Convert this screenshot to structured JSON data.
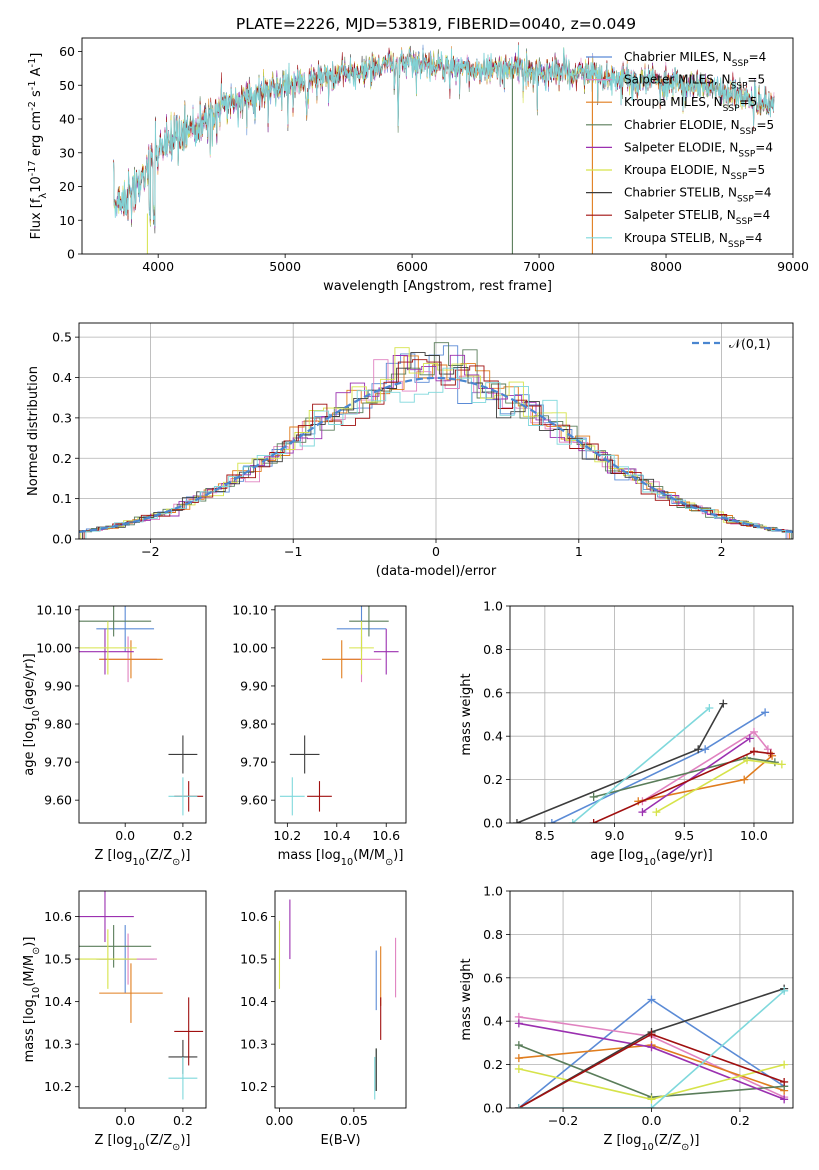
{
  "figure_title": "PLATE=2226, MJD=53819, FIBERID=0040, z=0.049",
  "series_names": [
    "Chabrier MILES, N$_{SSP}$=4",
    "Salpeter MILES, N$_{SSP}$=5",
    "Kroupa MILES, N$_{SSP}$=5",
    "Chabrier ELODIE, N$_{SSP}$=5",
    "Salpeter ELODIE, N$_{SSP}$=4",
    "Kroupa ELODIE, N$_{SSP}$=5",
    "Chabrier STELIB, N$_{SSP}$=4",
    "Salpeter STELIB, N$_{SSP}$=4",
    "Kroupa STELIB, N$_{SSP}$=4"
  ],
  "series_colors": [
    "#5b8bd6",
    "#e082c0",
    "#e07d1e",
    "#5a7d5a",
    "#9b30b0",
    "#d6e34a",
    "#3c3c3c",
    "#a01010",
    "#7fd8dc"
  ],
  "chart_data": [
    {
      "type": "line",
      "title": "PLATE=2226, MJD=53819, FIBERID=0040, z=0.049",
      "xlabel": "wavelength [Angstrom, rest frame]",
      "ylabel": "Flux [f$_\\lambda$10$^{-17}$ erg cm$^{-2}$ s$^{-1}$ A$^{-1}$]",
      "xlim": [
        3400,
        9000
      ],
      "ylim": [
        0,
        64
      ],
      "xticks": [
        4000,
        5000,
        6000,
        7000,
        8000,
        9000
      ],
      "yticks": [
        0,
        10,
        20,
        30,
        40,
        50,
        60
      ],
      "legend": "upper-right",
      "continuum": {
        "x": [
          3650,
          3800,
          3900,
          4000,
          4100,
          4300,
          4500,
          4800,
          5000,
          5300,
          5600,
          5800,
          6000,
          6200,
          6500,
          6800,
          7000,
          7200,
          7400,
          7600,
          7800,
          8000,
          8200,
          8400,
          8600,
          8800
        ],
        "y": [
          15,
          18,
          24,
          30,
          34,
          38,
          44,
          48,
          50,
          53,
          54,
          56,
          57,
          56,
          55,
          55,
          54,
          54,
          53,
          52,
          51,
          51,
          50,
          49,
          47,
          44
        ]
      },
      "dropouts": [
        {
          "x": 6790,
          "y": 0
        },
        {
          "x": 7420,
          "y": 0
        }
      ]
    },
    {
      "type": "line",
      "xlabel": "(data-model)/error",
      "ylabel": "Normed distribution",
      "xlim": [
        -2.5,
        2.5
      ],
      "ylim": [
        0,
        0.535
      ],
      "xticks": [
        -2,
        -1,
        0,
        1,
        2
      ],
      "yticks": [
        0.0,
        0.1,
        0.2,
        0.3,
        0.4,
        0.5
      ],
      "grid": true,
      "legend": "upper-right",
      "reference_curve": {
        "name": "$\\mathcal{N}(0,1)$",
        "mean": 0,
        "sigma": 1
      },
      "histogram": {
        "bin_width": 0.1,
        "x_range": [
          -2.5,
          2.5
        ],
        "shape": "gaussian",
        "peak": 0.4,
        "max_bar": 0.51
      }
    },
    {
      "type": "scatter",
      "xlabel": "Z [log$_{10}$(Z/Z$_\\odot$)]",
      "ylabel": "age  [log$_{10}$(age/yr)]",
      "xlim": [
        -0.16,
        0.28
      ],
      "ylim": [
        9.54,
        10.11
      ],
      "xticks": [
        0.0,
        0.2
      ],
      "yticks": [
        9.6,
        9.7,
        9.8,
        9.9,
        10.0,
        10.1
      ],
      "points": [
        {
          "x": 0.0,
          "xerr": 0.1,
          "y": 10.05,
          "yerr": 0.06
        },
        {
          "x": 0.01,
          "xerr": 0.1,
          "y": 9.97,
          "yerr": 0.06
        },
        {
          "x": 0.02,
          "xerr": 0.11,
          "y": 9.97,
          "yerr": 0.05
        },
        {
          "x": -0.04,
          "xerr": 0.13,
          "y": 10.07,
          "yerr": 0.04
        },
        {
          "x": -0.07,
          "xerr": 0.1,
          "y": 9.99,
          "yerr": 0.06
        },
        {
          "x": -0.06,
          "xerr": 0.1,
          "y": 10.0,
          "yerr": 0.07
        },
        {
          "x": 0.2,
          "xerr": 0.05,
          "y": 9.72,
          "yerr": 0.05
        },
        {
          "x": 0.22,
          "xerr": 0.05,
          "y": 9.61,
          "yerr": 0.04
        },
        {
          "x": 0.2,
          "xerr": 0.05,
          "y": 9.61,
          "yerr": 0.05
        }
      ]
    },
    {
      "type": "scatter",
      "xlabel": "mass [log$_{10}$(M/M$_\\odot$)]",
      "xlim": [
        10.15,
        10.68
      ],
      "ylim": [
        9.54,
        10.11
      ],
      "xticks": [
        10.2,
        10.4,
        10.6
      ],
      "yticks": [
        9.6,
        9.7,
        9.8,
        9.9,
        10.0,
        10.1
      ],
      "points": [
        {
          "x": 10.5,
          "xerr": 0.1,
          "y": 10.05,
          "yerr": 0.06
        },
        {
          "x": 10.5,
          "xerr": 0.08,
          "y": 9.97,
          "yerr": 0.06
        },
        {
          "x": 10.42,
          "xerr": 0.08,
          "y": 9.97,
          "yerr": 0.05
        },
        {
          "x": 10.53,
          "xerr": 0.08,
          "y": 10.07,
          "yerr": 0.04
        },
        {
          "x": 10.6,
          "xerr": 0.05,
          "y": 9.99,
          "yerr": 0.06
        },
        {
          "x": 10.5,
          "xerr": 0.05,
          "y": 10.0,
          "yerr": 0.07
        },
        {
          "x": 10.27,
          "xerr": 0.06,
          "y": 9.72,
          "yerr": 0.05
        },
        {
          "x": 10.33,
          "xerr": 0.05,
          "y": 9.61,
          "yerr": 0.04
        },
        {
          "x": 10.22,
          "xerr": 0.05,
          "y": 9.61,
          "yerr": 0.05
        }
      ]
    },
    {
      "type": "line",
      "xlabel": "age  [log$_{10}$(age/yr)]",
      "ylabel": "mass weight",
      "xlim": [
        8.25,
        10.28
      ],
      "ylim": [
        0,
        1.0
      ],
      "xticks": [
        8.5,
        9.0,
        9.5,
        10.0
      ],
      "yticks": [
        0.0,
        0.2,
        0.4,
        0.6,
        0.8,
        1.0
      ],
      "grid": true,
      "series": [
        {
          "x": [
            8.55,
            9.65,
            10.08
          ],
          "y": [
            0.0,
            0.34,
            0.51
          ]
        },
        {
          "x": [
            9.2,
            10.0,
            10.1
          ],
          "y": [
            0.1,
            0.42,
            0.34
          ]
        },
        {
          "x": [
            9.17,
            9.93,
            10.13
          ],
          "y": [
            0.1,
            0.2,
            0.31
          ]
        },
        {
          "x": [
            8.85,
            9.95,
            10.15
          ],
          "y": [
            0.12,
            0.3,
            0.28
          ]
        },
        {
          "x": [
            9.2,
            9.97
          ],
          "y": [
            0.05,
            0.39
          ]
        },
        {
          "x": [
            9.3,
            9.95,
            10.2
          ],
          "y": [
            0.05,
            0.29,
            0.27
          ]
        },
        {
          "x": [
            8.3,
            9.6,
            9.78
          ],
          "y": [
            0.0,
            0.34,
            0.55
          ]
        },
        {
          "x": [
            8.85,
            10.0,
            10.12
          ],
          "y": [
            0.0,
            0.33,
            0.32
          ]
        },
        {
          "x": [
            8.7,
            9.68
          ],
          "y": [
            0.0,
            0.53
          ]
        }
      ]
    },
    {
      "type": "scatter",
      "xlabel": "Z [log$_{10}$(Z/Z$_\\odot$)]",
      "ylabel": "mass [log$_{10}$(M/M$_\\odot$)]",
      "xlim": [
        -0.16,
        0.28
      ],
      "ylim": [
        10.15,
        10.66
      ],
      "xticks": [
        0.0,
        0.2
      ],
      "yticks": [
        10.2,
        10.3,
        10.4,
        10.5,
        10.6
      ],
      "points": [
        {
          "x": 0.0,
          "xerr": 0.1,
          "y": 10.5,
          "yerr": 0.08
        },
        {
          "x": 0.01,
          "xerr": 0.1,
          "y": 10.5,
          "yerr": 0.06
        },
        {
          "x": 0.02,
          "xerr": 0.11,
          "y": 10.42,
          "yerr": 0.07
        },
        {
          "x": -0.04,
          "xerr": 0.13,
          "y": 10.53,
          "yerr": 0.05
        },
        {
          "x": -0.07,
          "xerr": 0.1,
          "y": 10.6,
          "yerr": 0.06
        },
        {
          "x": -0.06,
          "xerr": 0.1,
          "y": 10.5,
          "yerr": 0.07
        },
        {
          "x": 0.2,
          "xerr": 0.05,
          "y": 10.27,
          "yerr": 0.04
        },
        {
          "x": 0.22,
          "xerr": 0.05,
          "y": 10.33,
          "yerr": 0.08
        },
        {
          "x": 0.2,
          "xerr": 0.05,
          "y": 10.22,
          "yerr": 0.05
        }
      ]
    },
    {
      "type": "scatter",
      "xlabel": "E(B-V)",
      "xlim": [
        -0.003,
        0.085
      ],
      "ylim": [
        10.15,
        10.66
      ],
      "xticks": [
        0.0,
        0.05
      ],
      "yticks": [
        10.2,
        10.3,
        10.4,
        10.5,
        10.6
      ],
      "points": [
        {
          "x": 0.065,
          "y": 10.45,
          "yerr": 0.07
        },
        {
          "x": 0.078,
          "y": 10.48,
          "yerr": 0.07
        },
        {
          "x": 0.068,
          "y": 10.46,
          "yerr": 0.07
        },
        {
          "x": 0.065,
          "y": 10.24,
          "yerr": 0.05
        },
        {
          "x": 0.007,
          "y": 10.57,
          "yerr": 0.07
        },
        {
          "x": 0.0,
          "y": 10.51,
          "yerr": 0.08
        },
        {
          "x": 0.065,
          "y": 10.24,
          "yerr": 0.05
        },
        {
          "x": 0.068,
          "y": 10.36,
          "yerr": 0.05
        },
        {
          "x": 0.064,
          "y": 10.22,
          "yerr": 0.05
        }
      ]
    },
    {
      "type": "line",
      "xlabel": "Z [log$_{10}$(Z/Z$_\\odot$)]",
      "ylabel": "mass weight",
      "xlim": [
        -0.32,
        0.32
      ],
      "ylim": [
        0,
        1.0
      ],
      "xticks": [
        -0.2,
        0.0,
        0.2
      ],
      "yticks": [
        0.0,
        0.2,
        0.4,
        0.6,
        0.8,
        1.0
      ],
      "grid": true,
      "series": [
        {
          "x": [
            -0.3,
            0.0,
            0.3
          ],
          "y": [
            0.0,
            0.5,
            0.1
          ]
        },
        {
          "x": [
            -0.3,
            0.0,
            0.3
          ],
          "y": [
            0.42,
            0.33,
            0.05
          ]
        },
        {
          "x": [
            -0.3,
            0.0,
            0.3
          ],
          "y": [
            0.23,
            0.29,
            0.08
          ]
        },
        {
          "x": [
            -0.3,
            0.0,
            0.3
          ],
          "y": [
            0.29,
            0.05,
            0.1
          ]
        },
        {
          "x": [
            -0.3,
            0.0,
            0.3
          ],
          "y": [
            0.39,
            0.28,
            0.04
          ]
        },
        {
          "x": [
            -0.3,
            0.0,
            0.3
          ],
          "y": [
            0.18,
            0.04,
            0.2
          ]
        },
        {
          "x": [
            -0.3,
            0.0,
            0.3
          ],
          "y": [
            0.0,
            0.35,
            0.55
          ]
        },
        {
          "x": [
            -0.3,
            0.0,
            0.3
          ],
          "y": [
            0.0,
            0.34,
            0.12
          ]
        },
        {
          "x": [
            -0.3,
            0.0,
            0.3
          ],
          "y": [
            0.0,
            0.0,
            0.54
          ]
        }
      ]
    }
  ]
}
